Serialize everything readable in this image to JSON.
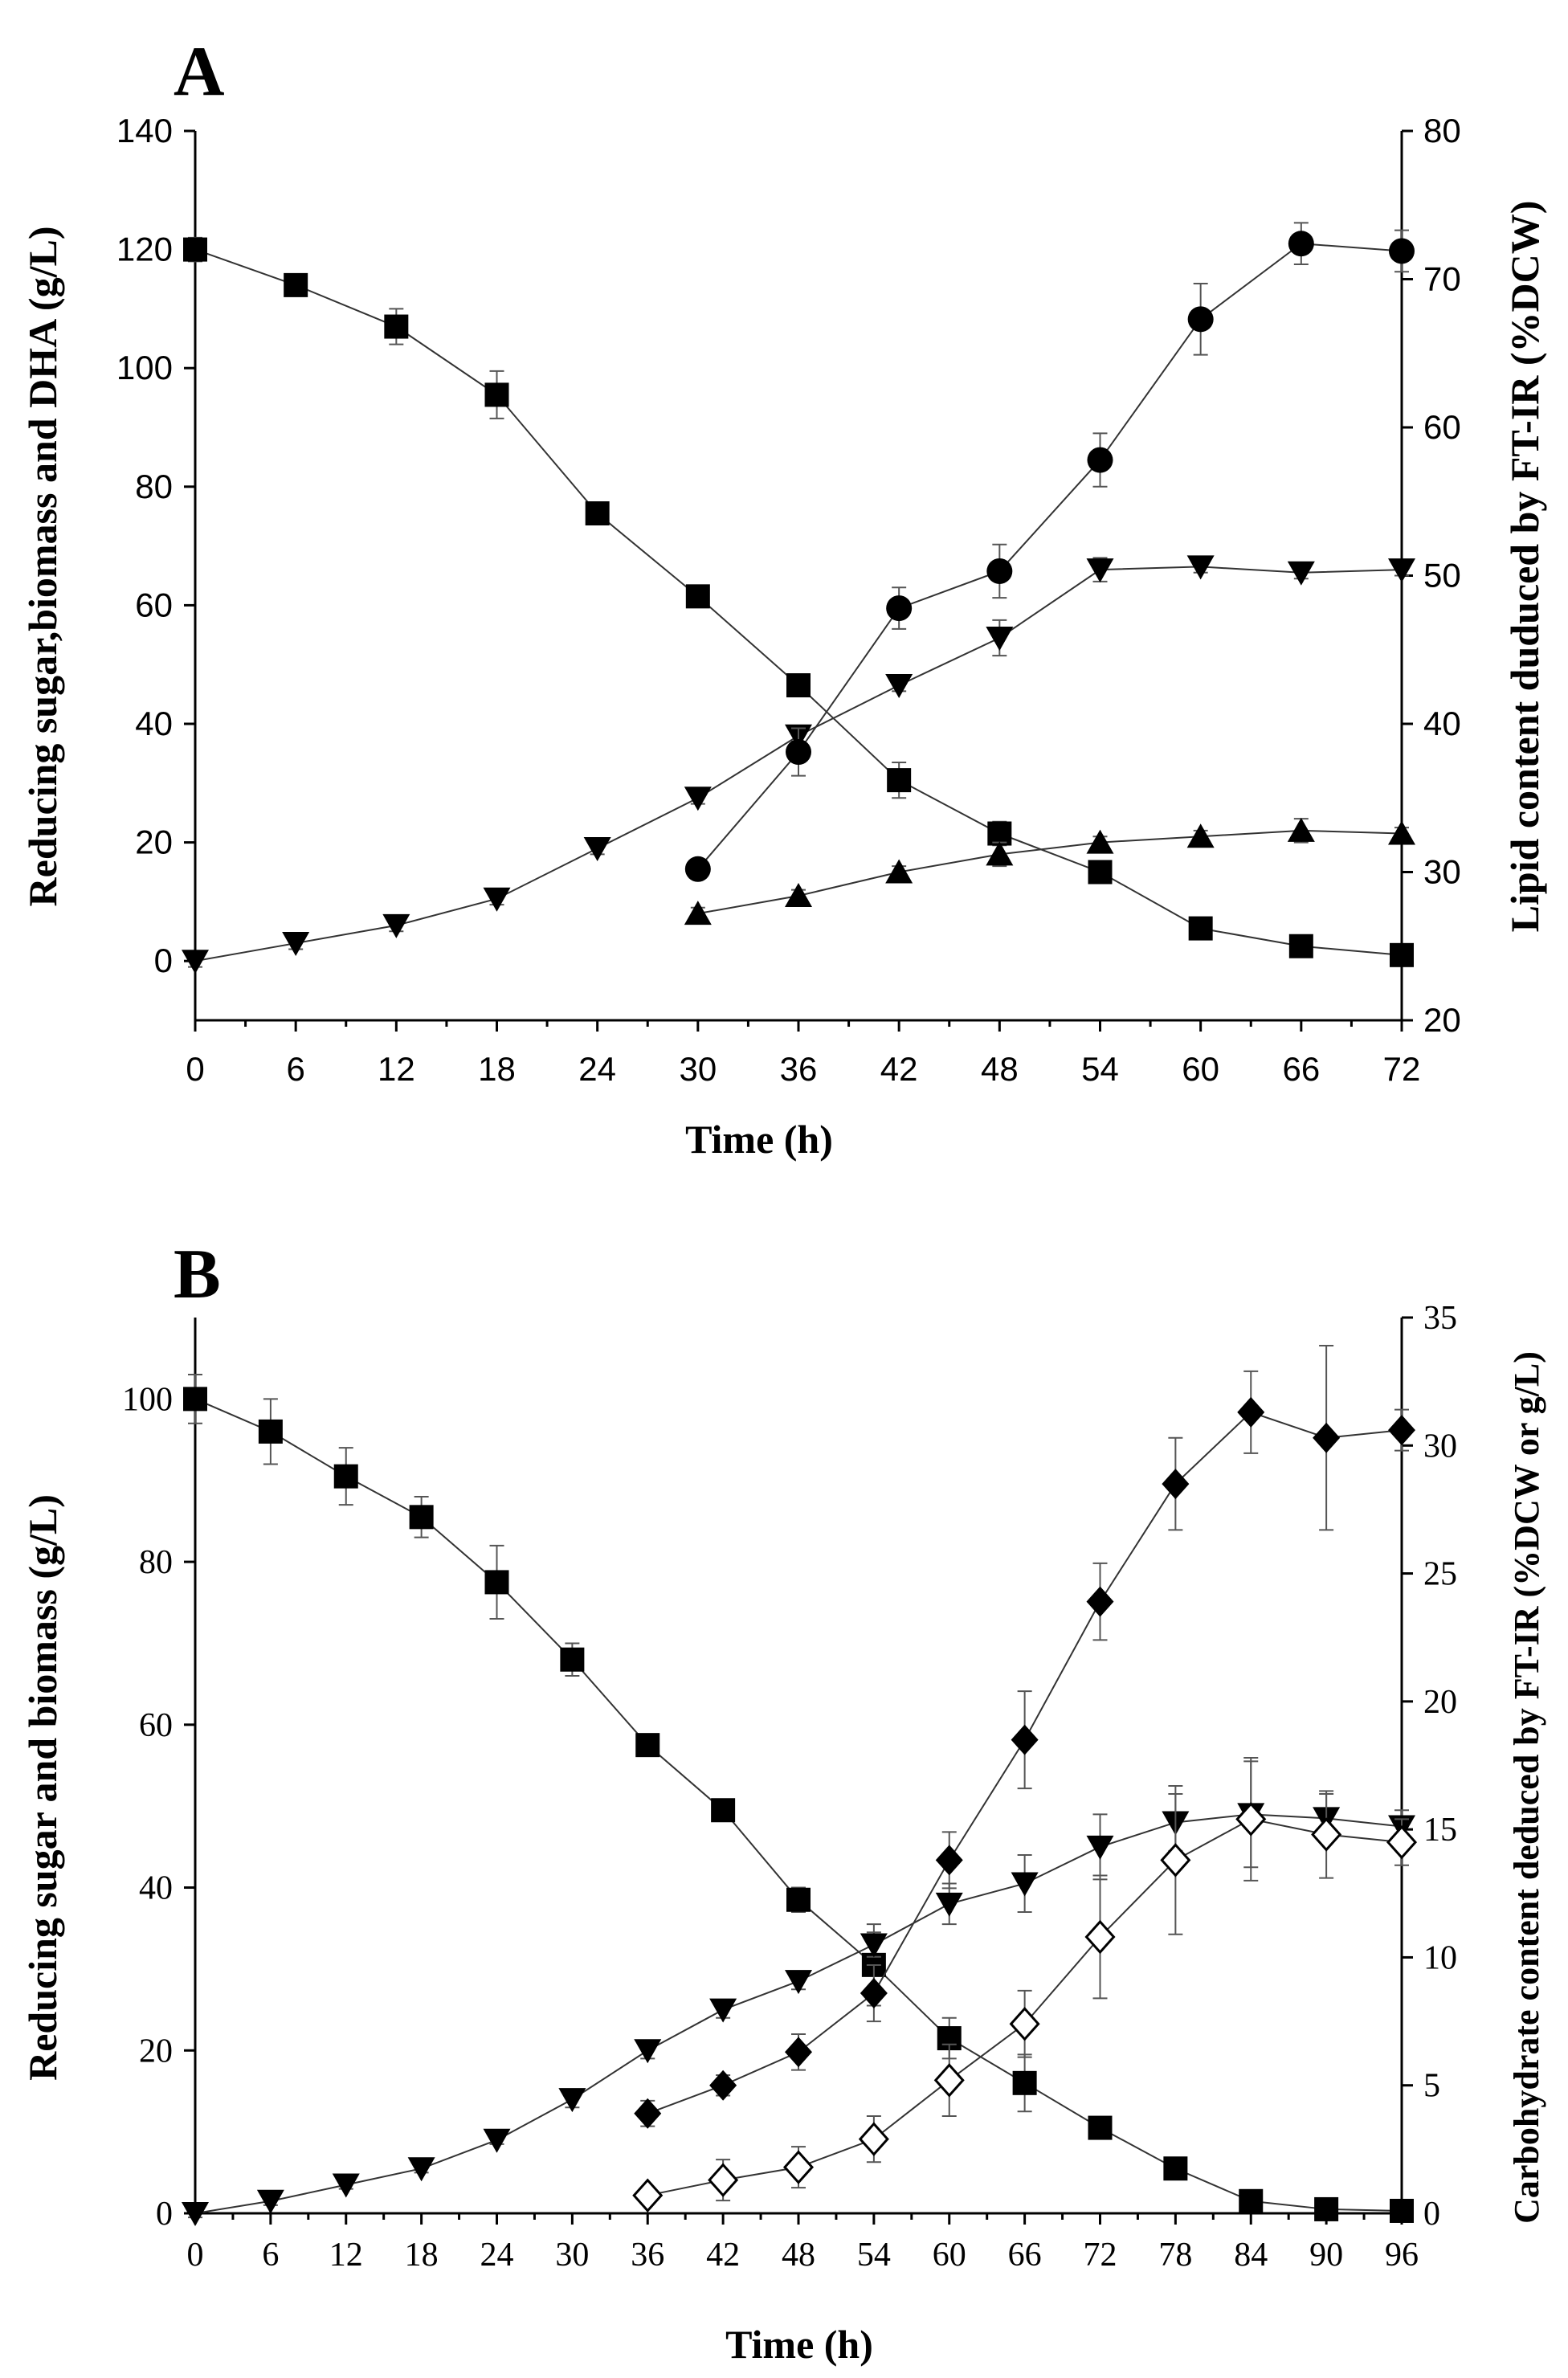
{
  "chart_data": [
    {
      "panel": "A",
      "type": "line",
      "xlabel": "Time (h)",
      "ylabel_left": "Reducing sugar,biomass and DHA (g/L)",
      "ylabel_right": "Lipid content duduced by FT-IR (%DCW)",
      "xlim": [
        0,
        72
      ],
      "ylim_left": [
        -10,
        140
      ],
      "ylim_right": [
        20,
        80
      ],
      "x_ticks": [
        "0",
        "6",
        "12",
        "18",
        "24",
        "30",
        "36",
        "42",
        "48",
        "54",
        "60",
        "66",
        "72"
      ],
      "y_ticks_left": [
        "0",
        "20",
        "40",
        "60",
        "80",
        "100",
        "120",
        "140"
      ],
      "y_ticks_right": [
        "20",
        "30",
        "40",
        "50",
        "60",
        "70",
        "80"
      ],
      "series": [
        {
          "name": "Reducing sugar",
          "marker": "square",
          "axis": "left",
          "x": [
            0,
            6,
            12,
            18,
            24,
            30,
            36,
            42,
            48,
            54,
            60,
            66,
            72
          ],
          "y": [
            120,
            114,
            107,
            95.5,
            75.5,
            61.5,
            46.5,
            30.5,
            21.5,
            15,
            5.5,
            2.5,
            1
          ],
          "err": [
            2,
            1,
            3,
            4,
            1,
            1,
            1,
            3,
            2,
            1,
            1,
            1,
            1
          ]
        },
        {
          "name": "Biomass",
          "marker": "triangle-down",
          "axis": "left",
          "x": [
            0,
            6,
            12,
            18,
            24,
            30,
            36,
            42,
            48,
            54,
            60,
            66,
            72
          ],
          "y": [
            0,
            3,
            6,
            10.5,
            19,
            27.5,
            38,
            46.5,
            54.5,
            66,
            66.5,
            65.5,
            66
          ],
          "err": [
            1,
            1,
            1,
            1,
            1,
            1,
            1,
            1,
            3,
            2,
            1,
            1,
            1
          ]
        },
        {
          "name": "DHA",
          "marker": "triangle-up",
          "axis": "left",
          "x": [
            30,
            36,
            42,
            48,
            54,
            60,
            66,
            72
          ],
          "y": [
            8,
            11,
            15,
            18,
            20,
            21,
            22,
            21.5
          ],
          "err": [
            1,
            1,
            1,
            2,
            1,
            1,
            2,
            1
          ]
        },
        {
          "name": "Lipid content",
          "marker": "circle",
          "axis": "right",
          "x": [
            30,
            36,
            42,
            48,
            54,
            60,
            66,
            72
          ],
          "y": [
            30.2,
            38.1,
            47.8,
            50.3,
            57.8,
            67.3,
            72.4,
            71.9
          ],
          "err": [
            0.6,
            1.6,
            1.4,
            1.8,
            1.8,
            2.4,
            1.4,
            1.4
          ]
        }
      ]
    },
    {
      "panel": "B",
      "type": "line",
      "xlabel": "Time (h)",
      "ylabel_left": "Reducing sugar and biomass (g/L)",
      "ylabel_right": "Carbohydrate content deduced by FT-IR (%DCW or g/L)",
      "xlim": [
        0,
        96
      ],
      "ylim_left": [
        0,
        110
      ],
      "ylim_right": [
        0,
        35
      ],
      "x_ticks": [
        "0",
        "6",
        "12",
        "18",
        "24",
        "30",
        "36",
        "42",
        "48",
        "54",
        "60",
        "66",
        "72",
        "78",
        "84",
        "90",
        "96"
      ],
      "y_ticks_left": [
        "0",
        "20",
        "40",
        "60",
        "80",
        "100"
      ],
      "y_ticks_right": [
        "0",
        "5",
        "10",
        "15",
        "20",
        "25",
        "30",
        "35"
      ],
      "series": [
        {
          "name": "Reducing sugar",
          "marker": "square",
          "axis": "left",
          "x": [
            0,
            6,
            12,
            18,
            24,
            30,
            36,
            42,
            48,
            54,
            60,
            66,
            72,
            78,
            84,
            90,
            96
          ],
          "y": [
            100,
            96,
            90.5,
            85.5,
            77.5,
            68,
            57.5,
            49.5,
            38.5,
            30.5,
            21.5,
            16,
            10.5,
            5.5,
            1.5,
            0.5,
            0.3
          ],
          "err": [
            3,
            4,
            3.5,
            2.5,
            4.5,
            2,
            1,
            1,
            1.5,
            5,
            2.5,
            3.5,
            1,
            1,
            1,
            0.5,
            0.5
          ]
        },
        {
          "name": "Biomass",
          "marker": "triangle-down",
          "axis": "left",
          "x": [
            0,
            6,
            12,
            18,
            24,
            30,
            36,
            42,
            48,
            54,
            60,
            66,
            72,
            78,
            84,
            90,
            96
          ],
          "y": [
            0,
            1.5,
            3.5,
            5.5,
            9,
            14,
            20,
            25,
            28.5,
            33,
            38,
            40.5,
            45,
            48,
            49,
            48.5,
            47.5
          ],
          "err": [
            0.5,
            0.5,
            0.5,
            0.5,
            0.5,
            1,
            1,
            1,
            1,
            1.5,
            2.5,
            3.5,
            4,
            3.5,
            6.5,
            3,
            2
          ]
        },
        {
          "name": "Carbohydrate content (%DCW)",
          "marker": "diamond",
          "axis": "right",
          "x": [
            36,
            42,
            48,
            54,
            60,
            66,
            72,
            78,
            84,
            90,
            96
          ],
          "y": [
            3.9,
            5,
            6.3,
            8.6,
            13.8,
            18.5,
            23.9,
            28.5,
            31.3,
            30.3,
            30.6
          ],
          "err": [
            0.5,
            0.4,
            0.7,
            1.1,
            1.1,
            1.9,
            1.5,
            1.8,
            1.6,
            3.6,
            0.8
          ]
        },
        {
          "name": "Carbohydrate content (g/L)",
          "marker": "diamond-open",
          "axis": "right",
          "x": [
            36,
            42,
            48,
            54,
            60,
            66,
            72,
            78,
            84,
            90,
            96
          ],
          "y": [
            0.7,
            1.3,
            1.8,
            2.9,
            5.2,
            7.4,
            10.8,
            13.8,
            15.4,
            14.8,
            14.5
          ],
          "err": [
            0.3,
            0.8,
            0.8,
            0.9,
            1.4,
            1.3,
            2.4,
            2.9,
            2.4,
            1.7,
            0.9
          ]
        }
      ]
    }
  ]
}
